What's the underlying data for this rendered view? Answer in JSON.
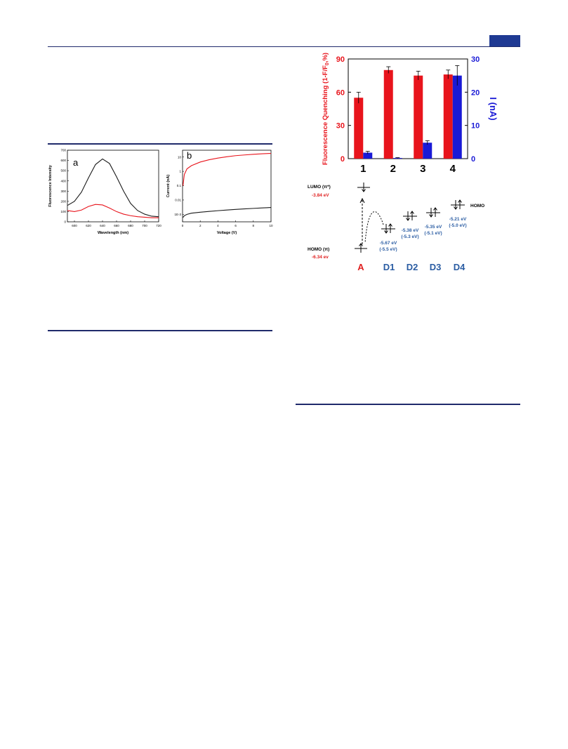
{
  "colors": {
    "rule": "#1f2a6b",
    "header_box": "#1f3a93",
    "red_series": "#e8141c",
    "blue_series": "#1a1ad6",
    "black_series": "#1a1a1a",
    "energy_blue_text": "#2b5da3",
    "energy_red_text": "#e02020"
  },
  "figure_a": {
    "panel_label": "a",
    "xlabel": "Wavelength (nm)",
    "ylabel": "Fluorescence Intensity",
    "chart_data": {
      "type": "line",
      "xlim": [
        590,
        720
      ],
      "ylim": [
        0,
        700
      ],
      "xticks": [
        "600",
        "620",
        "640",
        "660",
        "680",
        "700",
        "720"
      ],
      "yticks": [
        "0",
        "100",
        "200",
        "300",
        "400",
        "500",
        "600",
        "700"
      ],
      "series": [
        {
          "color": "#1a1a1a",
          "x": [
            590,
            600,
            610,
            620,
            630,
            640,
            650,
            660,
            670,
            680,
            690,
            700,
            710,
            720
          ],
          "y": [
            160,
            200,
            290,
            430,
            560,
            615,
            570,
            440,
            300,
            180,
            110,
            75,
            55,
            50
          ]
        },
        {
          "color": "#e8141c",
          "x": [
            590,
            600,
            610,
            620,
            630,
            640,
            650,
            660,
            670,
            680,
            690,
            700,
            710,
            720
          ],
          "y": [
            110,
            100,
            115,
            150,
            170,
            165,
            135,
            100,
            75,
            60,
            50,
            45,
            40,
            40
          ]
        }
      ]
    }
  },
  "figure_b": {
    "panel_label": "b",
    "xlabel": "Voltage (V)",
    "ylabel": "Current (nA)",
    "chart_data": {
      "type": "line",
      "yscale": "log",
      "xlim": [
        0,
        10
      ],
      "ylim": [
        0.0003,
        30
      ],
      "xticks": [
        "0",
        "2",
        "4",
        "6",
        "8",
        "10"
      ],
      "yticks": [
        "1E-3",
        "0.01",
        "0.1",
        "1",
        "10"
      ],
      "ytick_values": [
        0.001,
        0.01,
        0.1,
        1,
        10
      ],
      "series": [
        {
          "color": "#e8141c",
          "x": [
            0.05,
            0.2,
            0.5,
            1,
            2,
            3,
            4,
            5,
            6,
            7,
            8,
            9,
            10
          ],
          "y": [
            0.1,
            0.6,
            1.5,
            2.5,
            4.5,
            6.5,
            8.5,
            10.5,
            12.5,
            14,
            15.5,
            17,
            18
          ]
        },
        {
          "color": "#1a1a1a",
          "x": [
            0.05,
            0.2,
            0.5,
            1,
            2,
            3,
            4,
            5,
            6,
            7,
            8,
            9,
            10
          ],
          "y": [
            0.0006,
            0.0008,
            0.001,
            0.0012,
            0.0014,
            0.0016,
            0.0018,
            0.002,
            0.0022,
            0.0024,
            0.0026,
            0.0028,
            0.003
          ]
        }
      ]
    }
  },
  "figure_c": {
    "ylabel_left": "Fluorescence Quenching (1-F/F",
    "ylabel_left_sub": "0",
    "ylabel_left_end": ",%)",
    "ylabel_right": "I (nA)",
    "chart_data": {
      "type": "bar",
      "categories": [
        "1",
        "2",
        "3",
        "4"
      ],
      "left_axis": {
        "ylim": [
          0,
          90
        ],
        "yticks": [
          "0",
          "30",
          "60",
          "90"
        ]
      },
      "right_axis": {
        "ylim": [
          0,
          30
        ],
        "yticks": [
          "0",
          "10",
          "20",
          "30"
        ]
      },
      "series": [
        {
          "axis": "left",
          "color": "#e8141c",
          "values": [
            55,
            80,
            75,
            76
          ],
          "errors": [
            5,
            3,
            4,
            4
          ]
        },
        {
          "axis": "right",
          "color": "#1a1ad6",
          "values": [
            1.8,
            0.2,
            4.8,
            25
          ],
          "errors": [
            0.4,
            0.1,
            0.6,
            3
          ]
        }
      ]
    }
  },
  "energy": {
    "lumo_label": "LUMO (π*)",
    "lumo_value": "-3.84 eV",
    "homo_label": "HOMO (π)",
    "homo_value": "-6.34 ev",
    "homo_right_label": "HOMO",
    "levels": [
      {
        "value": "-5.67 eV",
        "paren": "(-5.5 eV)"
      },
      {
        "value": "-5.38 eV",
        "paren": "(-5.3 eV)"
      },
      {
        "value": "-5.35 eV",
        "paren": "(-5.1 eV)"
      },
      {
        "value": "-5.21 eV",
        "paren": "(-5.0 eV)"
      }
    ],
    "labels": [
      "A",
      "D1",
      "D2",
      "D3",
      "D4"
    ]
  }
}
